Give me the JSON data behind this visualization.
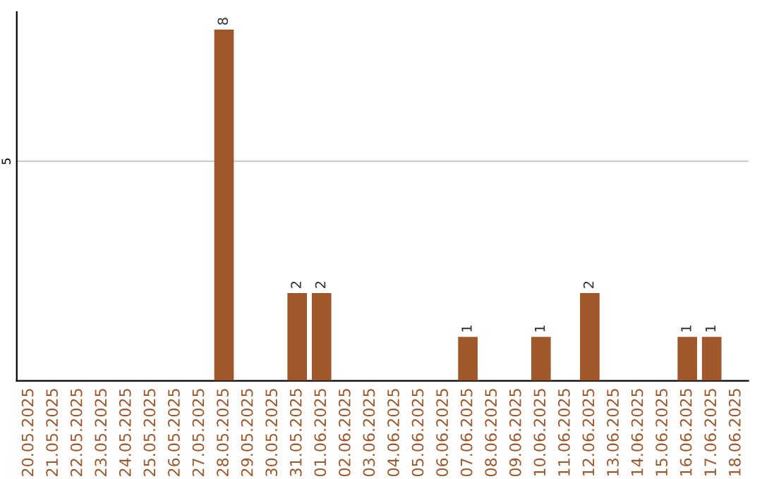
{
  "chart_data": {
    "type": "bar",
    "categories": [
      "20.05.2025",
      "21.05.2025",
      "22.05.2025",
      "23.05.2025",
      "24.05.2025",
      "25.05.2025",
      "26.05.2025",
      "27.05.2025",
      "28.05.2025",
      "29.05.2025",
      "30.05.2025",
      "31.05.2025",
      "01.06.2025",
      "02.06.2025",
      "03.06.2025",
      "04.06.2025",
      "05.06.2025",
      "06.06.2025",
      "07.06.2025",
      "08.06.2025",
      "09.06.2025",
      "10.06.2025",
      "11.06.2025",
      "12.06.2025",
      "13.06.2025",
      "14.06.2025",
      "15.06.2025",
      "16.06.2025",
      "17.06.2025",
      "18.06.2025"
    ],
    "values": [
      0,
      0,
      0,
      0,
      0,
      0,
      0,
      0,
      8,
      0,
      0,
      2,
      2,
      0,
      0,
      0,
      0,
      0,
      1,
      0,
      0,
      1,
      0,
      2,
      0,
      0,
      0,
      1,
      1,
      0
    ],
    "value_labels": [
      null,
      null,
      null,
      null,
      null,
      null,
      null,
      null,
      "8",
      null,
      null,
      "2",
      "2",
      null,
      null,
      null,
      null,
      null,
      "1",
      null,
      null,
      "1",
      null,
      "2",
      null,
      null,
      null,
      "1",
      "1",
      null
    ],
    "color": "#a0572a",
    "ylim": [
      0,
      8.4
    ],
    "yticks": [
      5
    ],
    "grid": "y"
  }
}
